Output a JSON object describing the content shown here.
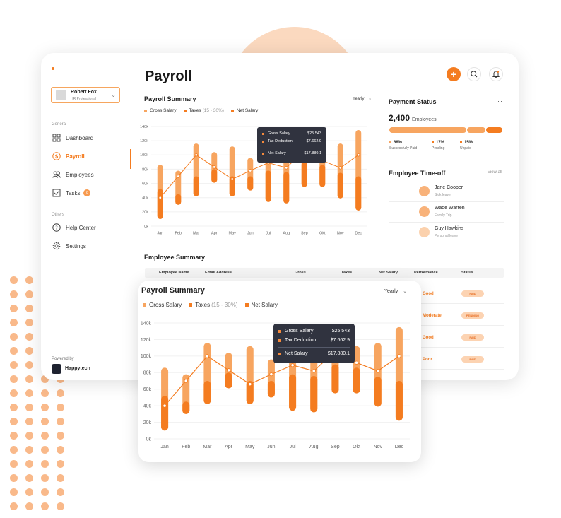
{
  "sidebar": {
    "profile": {
      "name": "Robert Fox",
      "role": "HR Professional"
    },
    "general_label": "General",
    "items": [
      {
        "label": "Dashboard",
        "icon": "grid-icon"
      },
      {
        "label": "Payroll",
        "icon": "dollar-icon",
        "active": true
      },
      {
        "label": "Employees",
        "icon": "users-icon"
      },
      {
        "label": "Tasks",
        "icon": "checkbox-icon",
        "badge": "8"
      }
    ],
    "others_label": "Others",
    "other_items": [
      {
        "label": "Help Center",
        "icon": "help-icon"
      },
      {
        "label": "Settings",
        "icon": "gear-icon"
      }
    ],
    "powered_by": "Powered by",
    "brand": "Happytech"
  },
  "header": {
    "title": "Payroll"
  },
  "summary": {
    "title": "Payroll Summary",
    "period": "Yearly",
    "legend": {
      "gross": "Gross Salary",
      "taxes": "Taxes",
      "taxes_note": "(15 - 30%)",
      "net": "Net Salary"
    }
  },
  "summary_front": {
    "title": "Payroll Summary",
    "period": "Yearly",
    "legend": {
      "gross": "Gross Salary",
      "taxes": "Taxes",
      "taxes_note": "(15 - 30%)",
      "net": "Net Salary"
    }
  },
  "tooltip": {
    "gross_label": "Gross Salary",
    "gross_value": "$25.543",
    "tax_label": "Tax Deduction",
    "tax_value": "$7.662.9",
    "net_label": "Net Salary",
    "net_value": "$17.880.1"
  },
  "payment_status": {
    "title": "Payment Status",
    "count": "2,400",
    "count_label": "Employees",
    "stats": [
      {
        "pct": "68%",
        "label": "Successfully Paid"
      },
      {
        "pct": "17%",
        "label": "Pending"
      },
      {
        "pct": "15%",
        "label": "Unpaid"
      }
    ],
    "shares": [
      0.68,
      0.17,
      0.15
    ]
  },
  "time_off": {
    "title": "Employee Time-off",
    "view_all": "View all",
    "items": [
      {
        "name": "Jane Cooper",
        "reason": "Sick leave"
      },
      {
        "name": "Wade Warren",
        "reason": "Family Trip"
      },
      {
        "name": "Guy Hawkins",
        "reason": "Personal leave"
      }
    ]
  },
  "employee_summary": {
    "title": "Employee Summary",
    "columns": [
      "Employee Name",
      "Email Address",
      "Gross",
      "Taxes",
      "Net Salary",
      "Performance",
      "Status"
    ],
    "rows": [
      {
        "performance": "Good",
        "status": "PAID"
      },
      {
        "performance": "Moderate",
        "status": "PENDING"
      },
      {
        "performance": "Good",
        "status": "PAID"
      },
      {
        "performance": "Poor",
        "status": "PAID"
      }
    ]
  },
  "colors": {
    "accent": "#f47c20",
    "light": "#f7a560",
    "dark_tooltip": "#30333f"
  },
  "chart_data": {
    "type": "bar",
    "categories": [
      "Jan",
      "Feb",
      "Mar",
      "Apr",
      "May",
      "Jun",
      "Jul",
      "Aug",
      "Sep",
      "Okt",
      "Nov",
      "Dec"
    ],
    "y_ticks": [
      "0k",
      "20k",
      "40k",
      "60k",
      "80k",
      "100k",
      "120k",
      "140k"
    ],
    "ylim": [
      0,
      140
    ],
    "series": [
      {
        "name": "Gross Salary",
        "values": [
          [
            10,
            86
          ],
          [
            30,
            78
          ],
          [
            42,
            116
          ],
          [
            61,
            104
          ],
          [
            42,
            112
          ],
          [
            50,
            96
          ],
          [
            34,
            114
          ],
          [
            32,
            108
          ],
          [
            55,
            110
          ],
          [
            55,
            112
          ],
          [
            39,
            116
          ],
          [
            22,
            135
          ]
        ]
      },
      {
        "name": "Taxes",
        "values": [
          [
            10,
            52
          ],
          [
            30,
            45
          ],
          [
            42,
            70
          ],
          [
            61,
            80
          ],
          [
            42,
            70
          ],
          [
            50,
            70
          ],
          [
            34,
            78
          ],
          [
            32,
            76
          ],
          [
            55,
            90
          ],
          [
            55,
            86
          ],
          [
            39,
            75
          ],
          [
            22,
            70
          ]
        ]
      },
      {
        "name": "Net Salary",
        "values": [
          40,
          70,
          100,
          83,
          66,
          78,
          89,
          82,
          106,
          92,
          82,
          100
        ]
      }
    ]
  }
}
